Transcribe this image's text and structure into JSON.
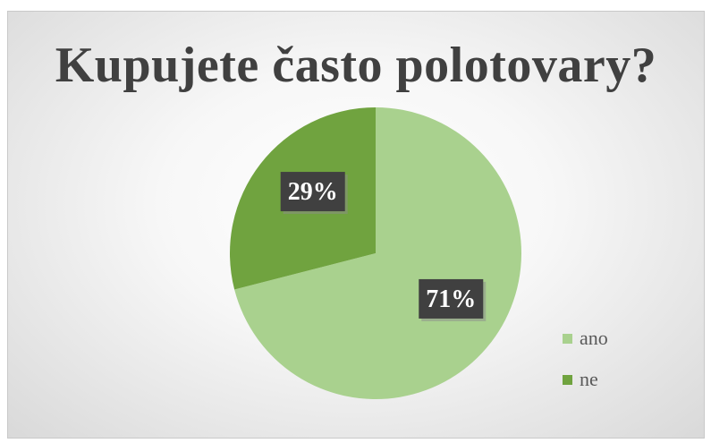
{
  "chart_data": {
    "type": "pie",
    "title": "Kupujete často polotovary?",
    "categories": [
      "ano",
      "ne"
    ],
    "values": [
      71,
      29
    ],
    "labels": [
      "71%",
      "29%"
    ],
    "colors": [
      "#a9d18e",
      "#70a33f"
    ],
    "legend_position": "bottom-right",
    "start_angle": "12 o'clock, clockwise"
  }
}
